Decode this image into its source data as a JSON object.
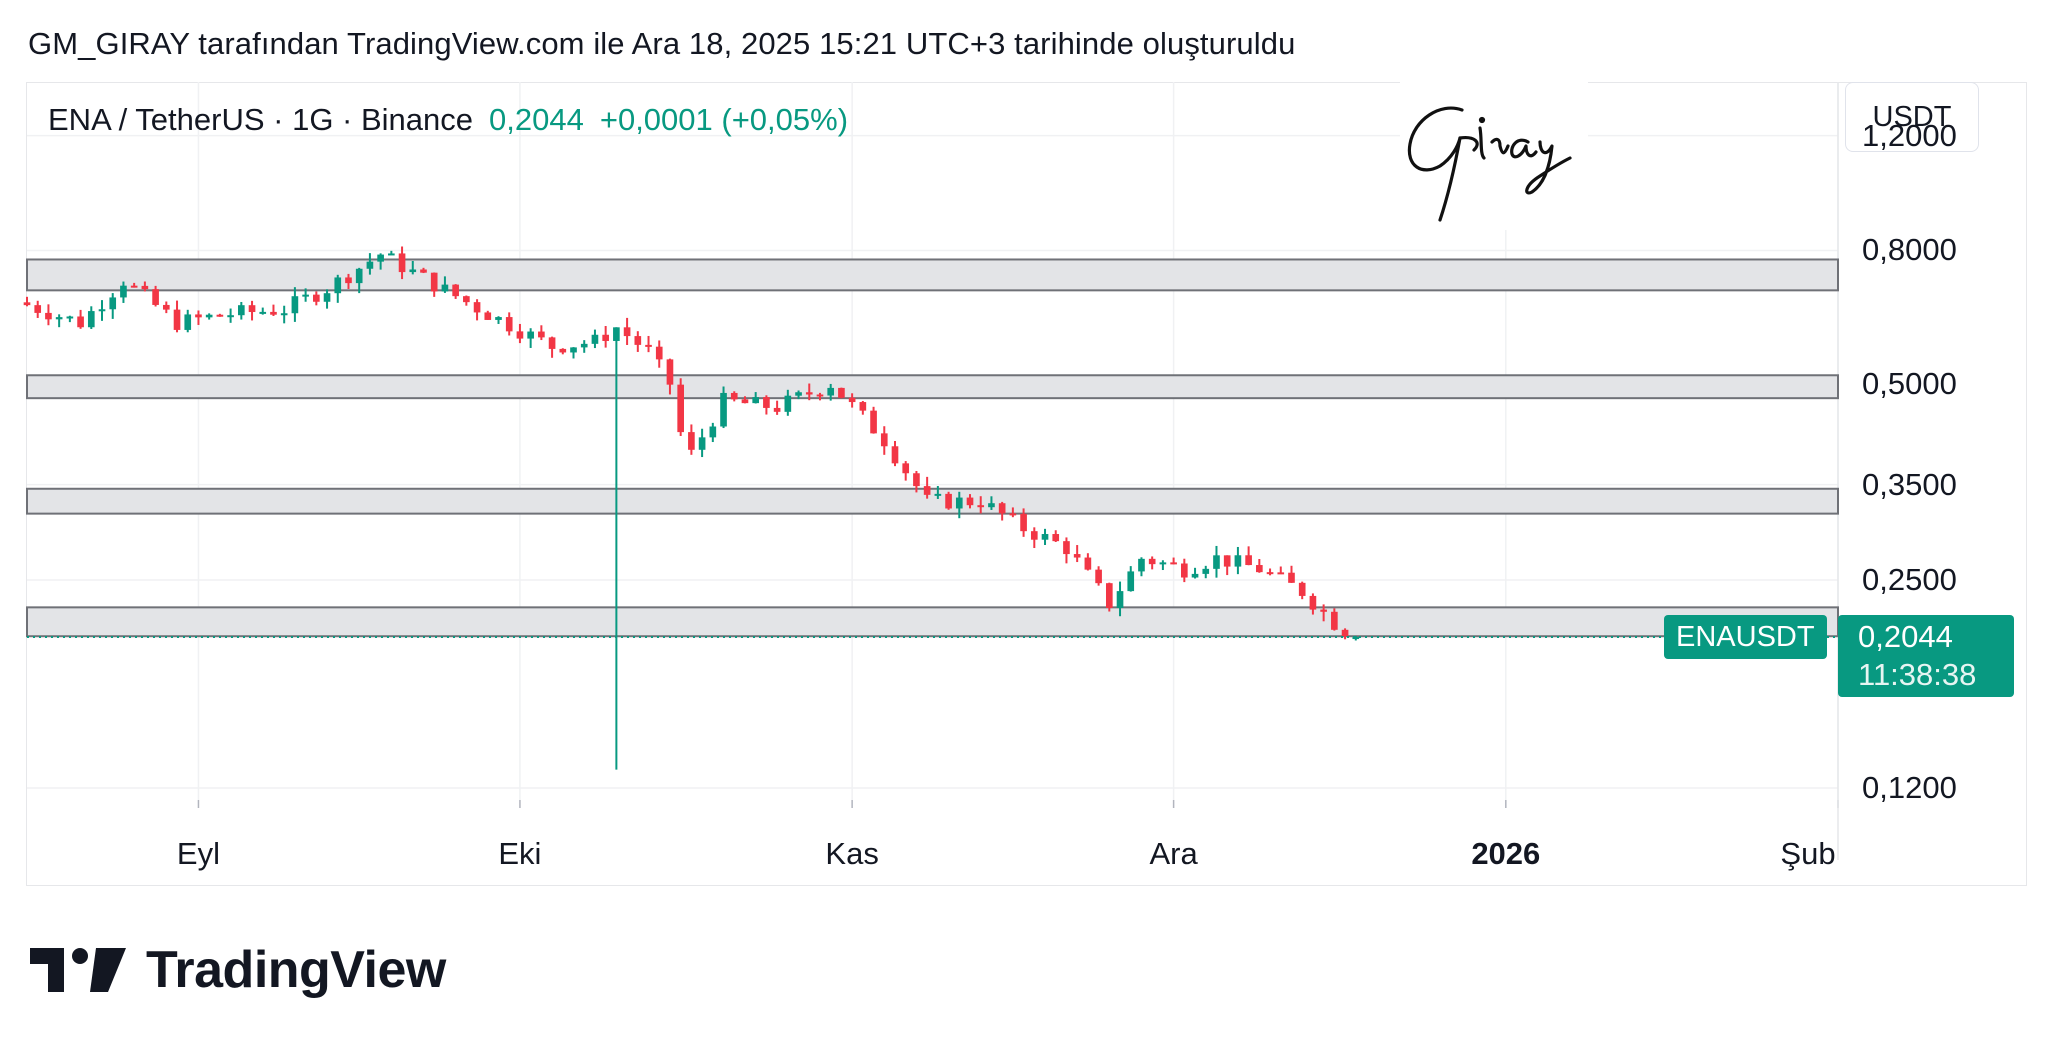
{
  "header": {
    "credit": "GM_GIRAY tarafından TradingView.com ile Ara 18, 2025 15:21 UTC+3 tarihinde oluşturuldu"
  },
  "legend": {
    "symbol": "ENA / TetherUS · 1G · Binance",
    "last_price": "0,2044",
    "change": "+0,0001 (+0,05%)"
  },
  "currency_button": "USDT",
  "signature_text": "Giray",
  "price_tag": {
    "symbol": "ENAUSDT",
    "price": "0,2044",
    "countdown": "11:38:38"
  },
  "logo_text": "TradingView",
  "colors": {
    "up": "#089981",
    "down": "#f23645",
    "zone_fill": "#e3e4e7",
    "zone_line": "#6f7177"
  },
  "icons": {
    "logo": "tradingview-logo-icon",
    "signature": "signature-icon"
  },
  "chart_data": {
    "type": "candlestick",
    "y_scale": "log",
    "ylim": [
      0.115,
      1.45
    ],
    "y_ticks": [
      {
        "value": 1.2,
        "label": "1,2000"
      },
      {
        "value": 0.8,
        "label": "0,8000"
      },
      {
        "value": 0.5,
        "label": "0,5000"
      },
      {
        "value": 0.35,
        "label": "0,3500"
      },
      {
        "value": 0.25,
        "label": "0,2500"
      },
      {
        "value": 0.12,
        "label": "0,1200"
      }
    ],
    "x_ticks": [
      {
        "date": "2025-09-01",
        "label": "Eyl",
        "bold": false
      },
      {
        "date": "2025-10-01",
        "label": "Eki",
        "bold": false
      },
      {
        "date": "2025-11-01",
        "label": "Kas",
        "bold": false
      },
      {
        "date": "2025-12-01",
        "label": "Ara",
        "bold": false
      },
      {
        "date": "2026-01-01",
        "label": "2026",
        "bold": true
      },
      {
        "date": "2026-02-01",
        "label": "Şub",
        "bold": false
      }
    ],
    "x_range": [
      "2025-08-16",
      "2026-02-01"
    ],
    "last_price": 0.2044,
    "zones": [
      {
        "low": 0.695,
        "high": 0.775
      },
      {
        "low": 0.475,
        "high": 0.515
      },
      {
        "low": 0.316,
        "high": 0.345
      },
      {
        "low": 0.205,
        "high": 0.227
      }
    ],
    "anchors": [
      [
        "2025-08-16",
        0.66
      ],
      [
        "2025-08-21",
        0.62
      ],
      [
        "2025-08-25",
        0.72
      ],
      [
        "2025-08-30",
        0.62
      ],
      [
        "2025-09-04",
        0.64
      ],
      [
        "2025-09-09",
        0.65
      ],
      [
        "2025-09-13",
        0.7
      ],
      [
        "2025-09-18",
        0.79
      ],
      [
        "2025-09-23",
        0.71
      ],
      [
        "2025-09-28",
        0.64
      ],
      [
        "2025-10-04",
        0.57
      ],
      [
        "2025-10-08",
        0.58
      ],
      [
        "2025-10-10",
        0.61
      ],
      [
        "2025-10-13",
        0.56
      ],
      [
        "2025-10-15",
        0.5
      ],
      [
        "2025-10-16",
        0.42
      ],
      [
        "2025-10-17",
        0.39
      ],
      [
        "2025-10-20",
        0.47
      ],
      [
        "2025-10-25",
        0.46
      ],
      [
        "2025-10-30",
        0.5
      ],
      [
        "2025-11-04",
        0.41
      ],
      [
        "2025-11-08",
        0.33
      ],
      [
        "2025-11-13",
        0.33
      ],
      [
        "2025-11-17",
        0.3
      ],
      [
        "2025-11-21",
        0.28
      ],
      [
        "2025-11-25",
        0.23
      ],
      [
        "2025-11-28",
        0.27
      ],
      [
        "2025-12-02",
        0.26
      ],
      [
        "2025-12-05",
        0.27
      ],
      [
        "2025-12-09",
        0.26
      ],
      [
        "2025-12-13",
        0.24
      ],
      [
        "2025-12-16",
        0.215
      ],
      [
        "2025-12-18",
        0.2044
      ]
    ],
    "extreme_wicks": [
      {
        "date": "2025-10-10",
        "low": 0.128,
        "high": 0.61
      }
    ]
  }
}
